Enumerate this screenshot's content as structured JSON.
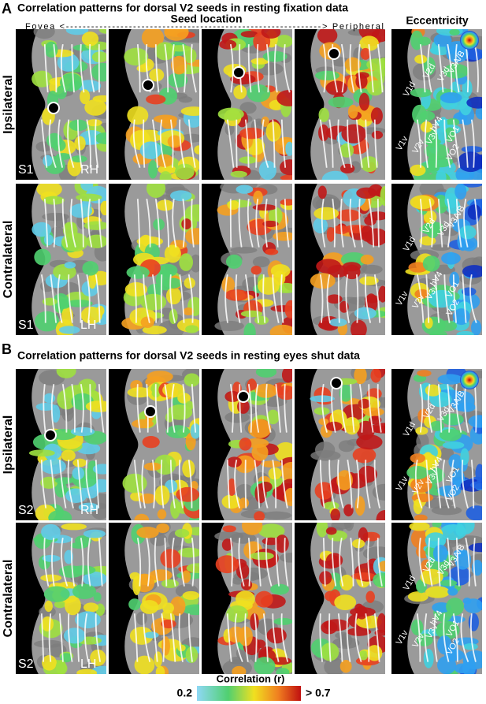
{
  "panels": [
    {
      "letter": "A",
      "title": "Correlation patterns for dorsal V2 seeds in resting fixation data",
      "seed_header": "Seed location",
      "axis_label": "Fovea <-------------------------------------------------------------> Peripheral",
      "eccentricity_header": "Eccentricity",
      "rows": [
        {
          "label": "Ipsilateral",
          "subject": "S1",
          "hemisphere": "RH"
        },
        {
          "label": "Contralateral",
          "subject": "S1",
          "hemisphere": "LH"
        }
      ]
    },
    {
      "letter": "B",
      "title": "Correlation patterns for dorsal V2 seeds in resting eyes shut data",
      "rows": [
        {
          "label": "Ipsilateral",
          "subject": "S2",
          "hemisphere": "RH"
        },
        {
          "label": "Contralateral",
          "subject": "S2",
          "hemisphere": "LH"
        }
      ]
    }
  ],
  "area_labels": [
    "V3A/B",
    "V3d",
    "V2d",
    "V1d",
    "hV4",
    "VO1",
    "VO2",
    "V1v",
    "V2v",
    "V3v"
  ],
  "colorbar": {
    "title": "Correlation (r)",
    "min_label": "0.2",
    "max_label": "> 0.7"
  }
}
